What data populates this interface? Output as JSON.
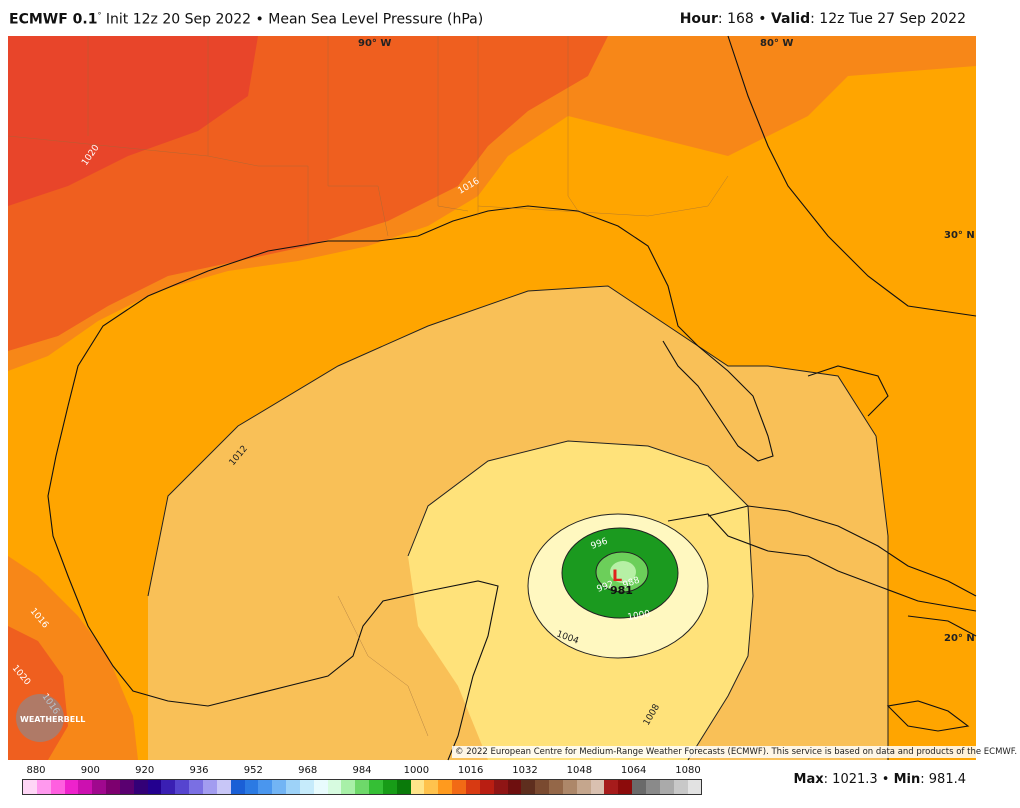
{
  "header": {
    "model": "ECMWF 0.1",
    "degree": "°",
    "init": "Init 12z 20 Sep 2022",
    "separator": "•",
    "field": "Mean Sea Level Pressure (hPa)",
    "hour_label": "Hour",
    "hour_value": ": 168",
    "valid_label": "Valid",
    "valid_value": ": 12z Tue 27 Sep 2022"
  },
  "map": {
    "lon_labels": [
      "90° W",
      "80° W"
    ],
    "lat_labels": [
      "30° N",
      "20° N"
    ],
    "contour_labels": [
      "1020",
      "1016",
      "1012",
      "1008",
      "1004",
      "1000",
      "996",
      "992",
      "988",
      "1016",
      "1016",
      "1020"
    ],
    "low_symbol": "L",
    "low_value": "981",
    "copyright": "© 2022 European Centre for Medium-Range Weather Forecasts (ECMWF). This service is based on data and products of the ECMWF.",
    "logo_text": "WEATHERBELL",
    "colors": {
      "p1024": "#e8452a",
      "p1020": "#ef5f1f",
      "p1016": "#f78718",
      "p1012": "#ffa500",
      "p1008": "#f9c057",
      "p1004": "#ffe27a",
      "p1000": "#fff8c0",
      "p996": "#1b9a1f",
      "p992": "#6ccf5a",
      "p988": "#b6f0a5",
      "land": "#000000"
    }
  },
  "legend": {
    "ticks": [
      "880",
      "900",
      "920",
      "936",
      "952",
      "968",
      "984",
      "1000",
      "1016",
      "1032",
      "1048",
      "1064",
      "1080"
    ],
    "colors": [
      "#ffd6f6",
      "#ff99ee",
      "#ff5fe0",
      "#ee22cc",
      "#cc10b0",
      "#a0088e",
      "#7d006f",
      "#5a0070",
      "#330077",
      "#23008f",
      "#3a1fb3",
      "#5644cf",
      "#7a6fe3",
      "#a29cf0",
      "#c8c6f7",
      "#1a5fd6",
      "#2b7ae3",
      "#4a96ee",
      "#72b4f4",
      "#9dd2f8",
      "#c6ebfb",
      "#e8fbfd",
      "#d7fbe0",
      "#a8f0a8",
      "#6ed86a",
      "#35bf35",
      "#179c17",
      "#0a7a0a",
      "#ffe48a",
      "#ffc24d",
      "#ff9a1e",
      "#f26a15",
      "#d83a12",
      "#b91e12",
      "#8f1515",
      "#6e0f0f",
      "#5e2e1e",
      "#7a4a30",
      "#946748",
      "#ad8769",
      "#c5a68d",
      "#d9c0b0",
      "#a61b1b",
      "#8c0b0b",
      "#6a6a6a",
      "#8a8a8a",
      "#aaaaaa",
      "#c8c8c8",
      "#e2e2e2"
    ]
  },
  "stats": {
    "max_label": "Max",
    "max_value": ": 1021.3",
    "sep": "•",
    "min_label": "Min",
    "min_value": ": 981.4"
  }
}
